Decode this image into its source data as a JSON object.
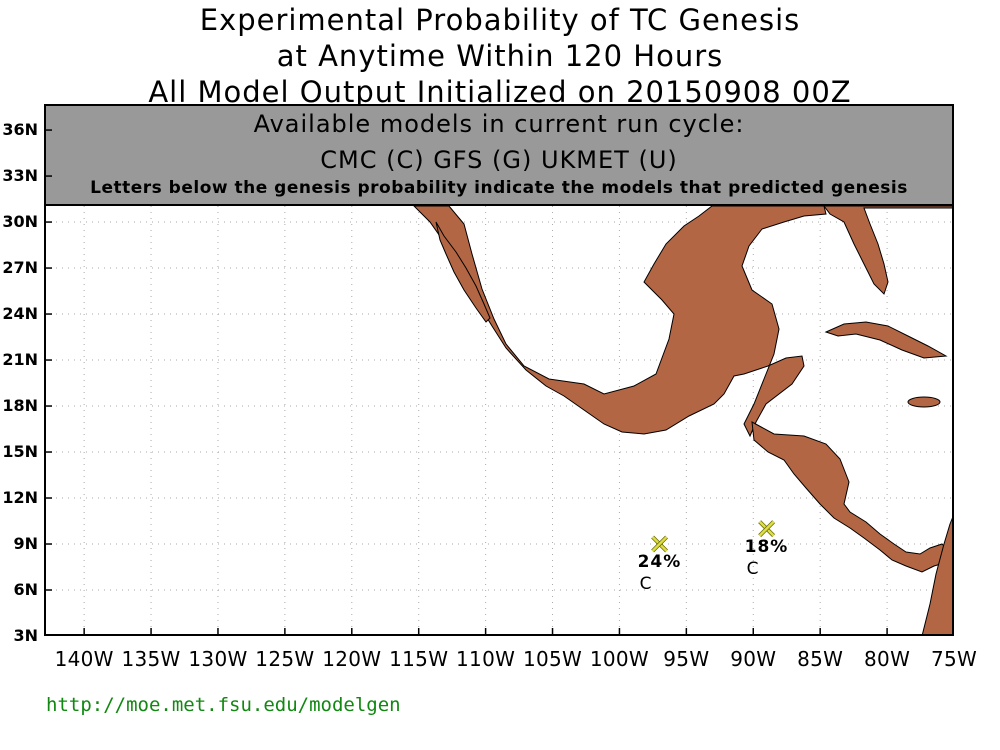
{
  "title": {
    "line1": "Experimental Probability of TC Genesis",
    "line2": "at Anytime Within 120 Hours",
    "line3": "All Model Output Initialized on 20150908 00Z"
  },
  "info_panel": {
    "heading": "Available models in current run cycle:",
    "models": "CMC (C) GFS (G)  UKMET (U)",
    "note": "Letters below the genesis probability indicate the models that predicted genesis"
  },
  "map": {
    "lat_labels": [
      "36N",
      "33N",
      "30N",
      "27N",
      "24N",
      "21N",
      "18N",
      "15N",
      "12N",
      "9N",
      "6N",
      "3N"
    ],
    "lon_labels": [
      "140W",
      "135W",
      "130W",
      "125W",
      "120W",
      "115W",
      "110W",
      "105W",
      "100W",
      "95W",
      "90W",
      "85W",
      "80W",
      "75W"
    ],
    "land_color": "#b26644",
    "marker_color": "#dddd44",
    "url_color": "#118811",
    "genesis_points": [
      {
        "lon": -97,
        "lat": 9,
        "probability": "24%",
        "models": "C"
      },
      {
        "lon": -89,
        "lat": 10,
        "probability": "18%",
        "models": "C"
      }
    ]
  },
  "footer": {
    "url": "http://moe.met.fsu.edu/modelgen"
  }
}
